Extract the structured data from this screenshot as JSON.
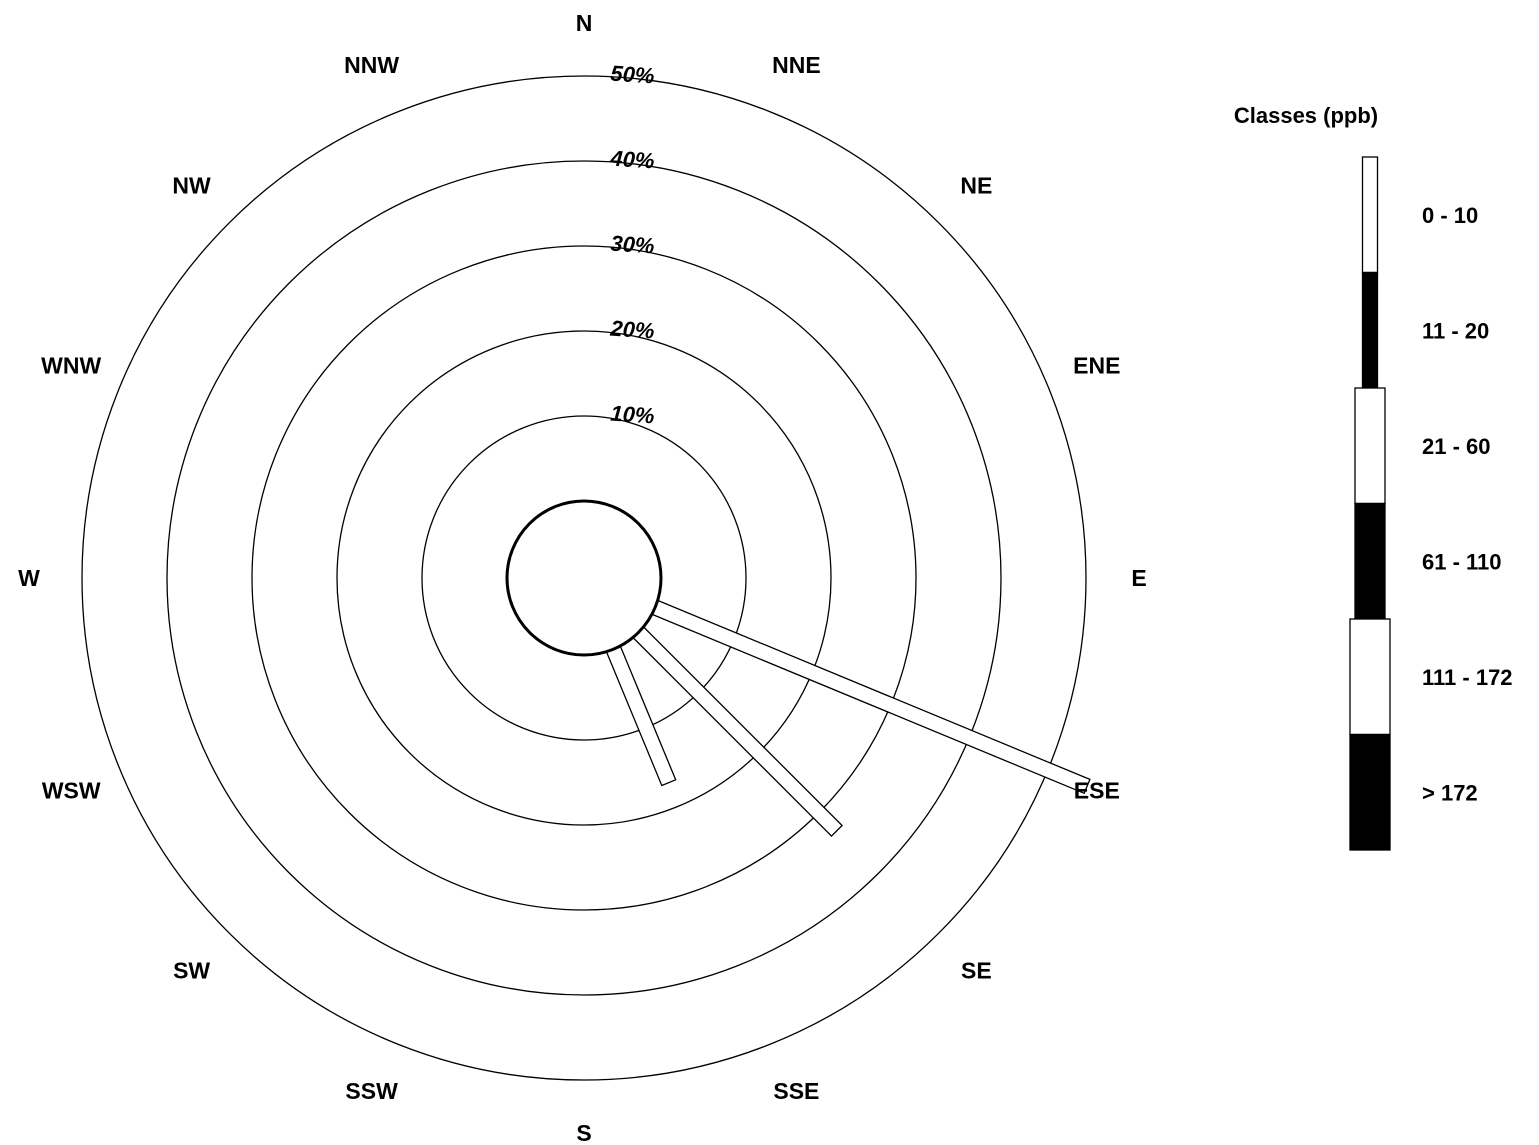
{
  "chart_data": {
    "type": "wind-rose",
    "directions": [
      "N",
      "NNE",
      "NE",
      "ENE",
      "E",
      "ESE",
      "SE",
      "SSE",
      "S",
      "SSW",
      "SW",
      "WSW",
      "W",
      "WNW",
      "NW",
      "NNW"
    ],
    "rings": [
      {
        "value": 10,
        "label": "10%"
      },
      {
        "value": 20,
        "label": "20%"
      },
      {
        "value": 30,
        "label": "30%"
      },
      {
        "value": 40,
        "label": "40%"
      },
      {
        "value": 50,
        "label": "50%"
      }
    ],
    "calm_circle": true,
    "max_value": 50,
    "petals": [
      {
        "bearing": 112.5,
        "value": 55,
        "class": "0 - 10"
      },
      {
        "bearing": 135,
        "value": 33,
        "class": "0 - 10"
      },
      {
        "bearing": 157.5,
        "value": 17,
        "class": "0 - 10"
      }
    ],
    "legend": {
      "title": "Classes (ppb)",
      "classes": [
        {
          "label": "0 - 10",
          "fill": "#ffffff"
        },
        {
          "label": "11 - 20",
          "fill": "#000000"
        },
        {
          "label": "21 - 60",
          "fill": "#ffffff"
        },
        {
          "label": "61 - 110",
          "fill": "#000000"
        },
        {
          "label": "111 - 172",
          "fill": "#ffffff"
        },
        {
          "label": "> 172",
          "fill": "#000000"
        }
      ]
    },
    "colors": {
      "stroke": "#000000",
      "background": "#ffffff"
    }
  }
}
